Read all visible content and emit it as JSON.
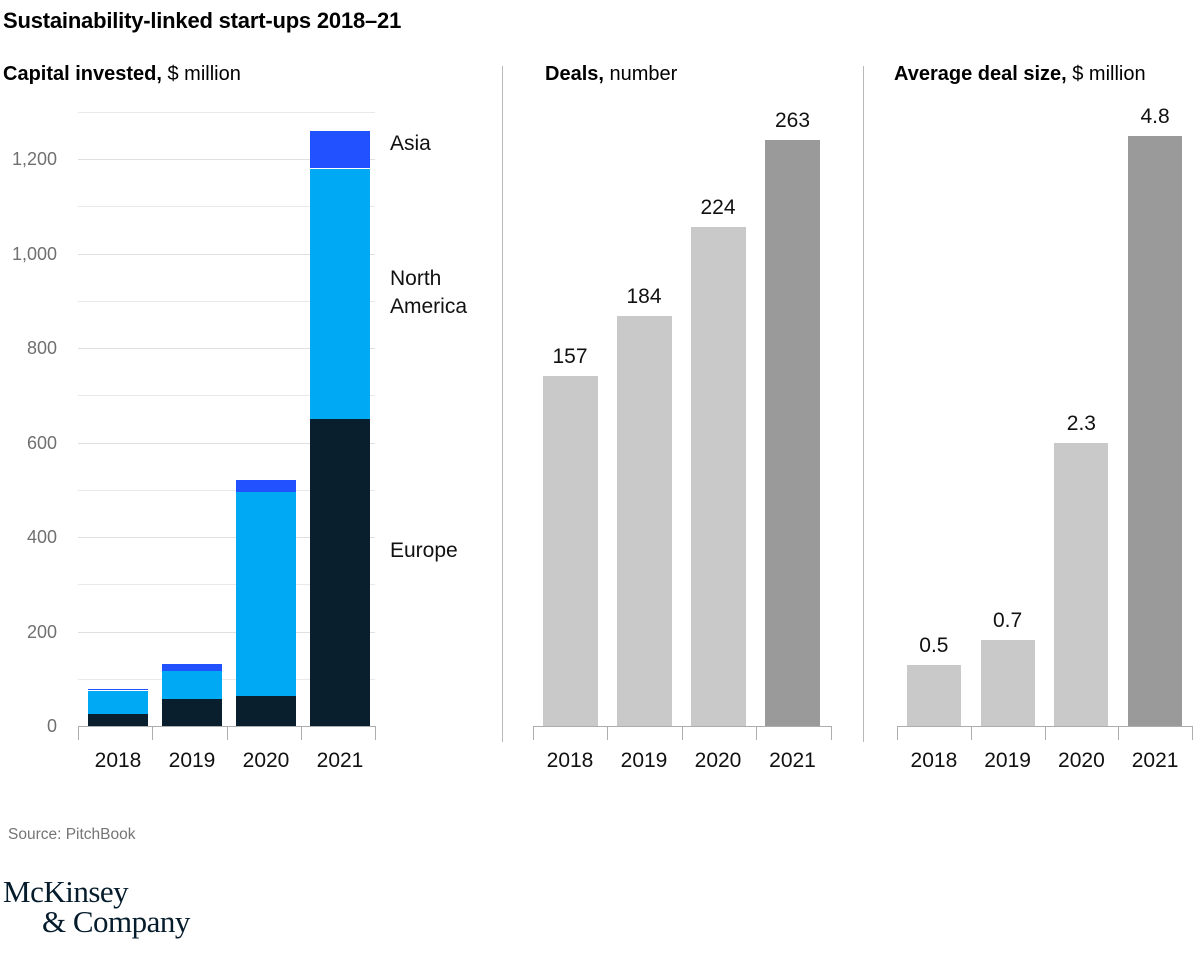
{
  "title": "Sustainability-linked start-ups 2018–21",
  "source": "Source: PitchBook",
  "logo": {
    "line1": "McKinsey",
    "line2": "& Company"
  },
  "colors": {
    "asia": "#2251ff",
    "north_america": "#00a9f4",
    "europe": "#0a1f2e",
    "bar_light": "#c9c9c9",
    "bar_dark": "#9a9a9a",
    "gridline_major": "#e0e0e0",
    "gridline_minor": "#e9e9e9",
    "axis": "#adadad"
  },
  "chart_data": [
    {
      "type": "bar",
      "stacked": true,
      "title_bold": "Capital invested,",
      "title_rest": "$ million",
      "categories": [
        "2018",
        "2019",
        "2020",
        "2021"
      ],
      "series": [
        {
          "name": "Europe",
          "color_key": "europe",
          "values": [
            25,
            57,
            63,
            650
          ]
        },
        {
          "name": "North America",
          "color_key": "north_america",
          "values": [
            50,
            60,
            432,
            530
          ]
        },
        {
          "name": "Asia",
          "color_key": "asia",
          "values": [
            3,
            15,
            25,
            80
          ]
        }
      ],
      "ylim": [
        0,
        1300
      ],
      "grid": true,
      "grid_step": 100,
      "legend_position": "right",
      "yticks": [
        {
          "value": 0,
          "label": "0"
        },
        {
          "value": 200,
          "label": "200"
        },
        {
          "value": 400,
          "label": "400"
        },
        {
          "value": 600,
          "label": "600"
        },
        {
          "value": 800,
          "label": "800"
        },
        {
          "value": 1000,
          "label": "1,000"
        },
        {
          "value": 1200,
          "label": "1,200"
        }
      ]
    },
    {
      "type": "bar",
      "stacked": false,
      "title_bold": "Deals,",
      "title_rest": "number",
      "categories": [
        "2018",
        "2019",
        "2020",
        "2021"
      ],
      "values": [
        157,
        184,
        224,
        263
      ],
      "value_labels": [
        "157",
        "184",
        "224",
        "263"
      ],
      "highlight_last": true,
      "ylim": [
        0,
        290
      ],
      "grid": false
    },
    {
      "type": "bar",
      "stacked": false,
      "title_bold": "Average deal size,",
      "title_rest": "$ million",
      "categories": [
        "2018",
        "2019",
        "2020",
        "2021"
      ],
      "values": [
        0.5,
        0.7,
        2.3,
        4.8
      ],
      "value_labels": [
        "0.5",
        "0.7",
        "2.3",
        "4.8"
      ],
      "highlight_last": true,
      "ylim": [
        0,
        5.2
      ],
      "grid": false
    }
  ]
}
